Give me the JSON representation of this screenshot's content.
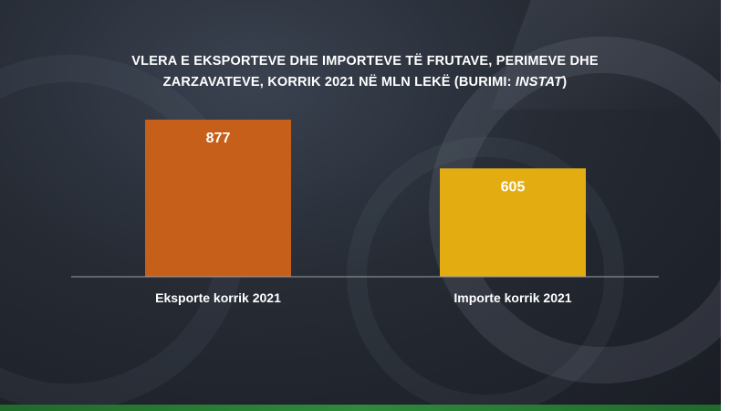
{
  "title": {
    "line1": "VLERA E EKSPORTEVE DHE IMPORTEVE TË FRUTAVE, PERIMEVE DHE",
    "line2_prefix": "ZARZAVATEVE, KORRIK 2021 NË MLN LEKË (BURIMI: ",
    "line2_source": "INSTAT",
    "line2_suffix": ")"
  },
  "colors": {
    "exports": "#C55F1A",
    "imports": "#E3AD11",
    "baseline": "#9aa0aa"
  },
  "chart_data": {
    "type": "bar",
    "title": "VLERA E EKSPORTEVE DHE IMPORTEVE TË FRUTAVE, PERIMEVE DHE ZARZAVATEVE, KORRIK 2021 NË MLN LEKË (BURIMI: INSTAT)",
    "categories": [
      "Eksporte korrik 2021",
      "Importe korrik 2021"
    ],
    "values": [
      877,
      605
    ],
    "value_labels": [
      "877",
      "605"
    ],
    "ylim": [
      0,
      877
    ],
    "grid": false,
    "legend": "none"
  }
}
